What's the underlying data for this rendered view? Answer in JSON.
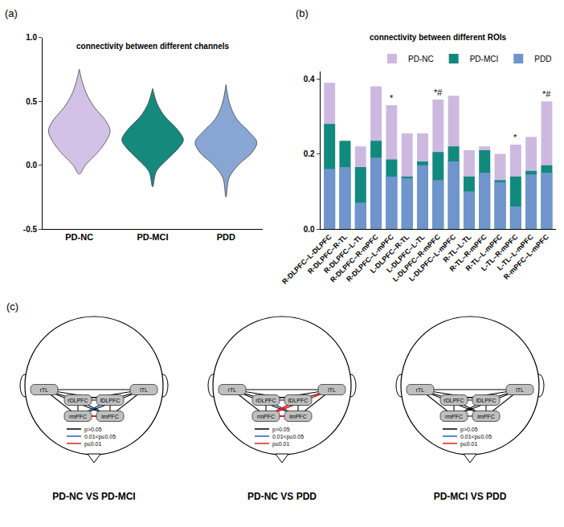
{
  "chart_data": [
    {
      "type": "violin",
      "panel": "(a)",
      "title": "connectivity between different channels",
      "categories": [
        "PD-NC",
        "PD-MCI",
        "PDD"
      ],
      "colors": [
        "#d3c2e7",
        "#14897c",
        "#87a6d4"
      ],
      "distributions": [
        {
          "y": [
            -0.07,
            0.0,
            0.1,
            0.2,
            0.27,
            0.35,
            0.45,
            0.55,
            0.65,
            0.75
          ],
          "density": [
            0,
            0.2,
            0.6,
            0.9,
            1.0,
            0.85,
            0.5,
            0.25,
            0.1,
            0
          ]
        },
        {
          "y": [
            -0.17,
            -0.05,
            0.05,
            0.15,
            0.2,
            0.28,
            0.38,
            0.48,
            0.6
          ],
          "density": [
            0,
            0.12,
            0.5,
            0.9,
            1.0,
            0.8,
            0.4,
            0.15,
            0
          ]
        },
        {
          "y": [
            -0.25,
            -0.1,
            0.0,
            0.1,
            0.18,
            0.26,
            0.36,
            0.48,
            0.63
          ],
          "density": [
            0,
            0.1,
            0.4,
            0.85,
            1.0,
            0.75,
            0.35,
            0.12,
            0
          ]
        }
      ],
      "ylim": [
        -0.5,
        1.0
      ],
      "yticks": [
        -0.5,
        {
          "value": 0,
          "label": "0.0"
        },
        0.5,
        {
          "value": 1,
          "label": "1.0"
        }
      ],
      "grid": false
    },
    {
      "type": "bar",
      "panel": "(b)",
      "title": "connectivity between different ROIs",
      "categories": [
        "R-DLPFC–L-DLPFC",
        "R-DLPFC–R-TL",
        "R-DLPFC–L-TL",
        "R-DLPFC–R-mPFC",
        "R-DLPFC–L-mPFC",
        "L-DLPFC–R-TL",
        "L-DLPFC–L-TL",
        "L-DLPFC–R-mPFC",
        "L-DLPFC–L-mPFC",
        "R-TL–L-TL",
        "R-TL–R-mPFC",
        "R-TL–L-mPFC",
        "L-TL–R-mPFC",
        "L-TL–L-mPFC",
        "R-mPFC–L-mPFC"
      ],
      "series": [
        {
          "name": "PD-NC",
          "color": "#cdb9e0",
          "values": [
            0.39,
            0.23,
            0.22,
            0.38,
            0.33,
            0.255,
            0.255,
            0.345,
            0.355,
            0.21,
            0.22,
            0.2,
            0.225,
            0.245,
            0.34
          ]
        },
        {
          "name": "PD-MCI",
          "color": "#118a7e",
          "values": [
            0.28,
            0.235,
            0.165,
            0.235,
            0.185,
            0.14,
            0.18,
            0.205,
            0.22,
            0.14,
            0.21,
            0.13,
            0.14,
            0.155,
            0.17
          ]
        },
        {
          "name": "PDD",
          "color": "#7095cc",
          "values": [
            0.16,
            0.165,
            0.07,
            0.19,
            0.14,
            0.135,
            0.17,
            0.13,
            0.18,
            0.1,
            0.15,
            0.125,
            0.06,
            0.145,
            0.15
          ]
        }
      ],
      "stacked": false,
      "legend": "top right",
      "ylim": [
        0,
        0.42
      ],
      "yticks": [
        {
          "value": 0,
          "label": "0.0"
        },
        0.2,
        0.4
      ],
      "grid": false,
      "annotations": [
        {
          "category": "R-DLPFC–L-mPFC",
          "text": "*"
        },
        {
          "category": "L-DLPFC–R-mPFC",
          "text": "*#"
        },
        {
          "category": "L-TL–R-mPFC",
          "text": "*"
        },
        {
          "category": "R-mPFC–L-mPFC",
          "text": "*#"
        }
      ]
    }
  ],
  "diagram": {
    "panel": "(c)",
    "nodes": [
      "rTL",
      "lTL",
      "rDLPFC",
      "lDLPFC",
      "rmPFC",
      "lmPFC"
    ],
    "legend": [
      {
        "label": "p>0.05",
        "color": "#000000"
      },
      {
        "label": "0.01<p≤0.05",
        "color": "#1f5fbf"
      },
      {
        "label": "p≤0.01",
        "color": "#e0201b"
      }
    ],
    "edges": [
      [
        "rDLPFC",
        "lDLPFC"
      ],
      [
        "rDLPFC",
        "rTL"
      ],
      [
        "rDLPFC",
        "lTL"
      ],
      [
        "rDLPFC",
        "rmPFC"
      ],
      [
        "rDLPFC",
        "lmPFC"
      ],
      [
        "lDLPFC",
        "rTL"
      ],
      [
        "lDLPFC",
        "lTL"
      ],
      [
        "lDLPFC",
        "rmPFC"
      ],
      [
        "lDLPFC",
        "lmPFC"
      ],
      [
        "rTL",
        "lTL"
      ],
      [
        "rTL",
        "rmPFC"
      ],
      [
        "rTL",
        "lmPFC"
      ],
      [
        "lTL",
        "rmPFC"
      ],
      [
        "lTL",
        "lmPFC"
      ],
      [
        "rmPFC",
        "lmPFC"
      ]
    ],
    "panels": [
      {
        "title": "PD-NC VS PD-MCI",
        "edge_colors": [
          "#000000",
          "#000000",
          "#000000",
          "#000000",
          "#000000",
          "#000000",
          "#000000",
          "#1f5fbf",
          "#000000",
          "#000000",
          "#000000",
          "#000000",
          "#000000",
          "#000000",
          "#e0201b"
        ]
      },
      {
        "title": "PD-NC VS PDD",
        "edge_colors": [
          "#000000",
          "#000000",
          "#000000",
          "#000000",
          "#1f5fbf",
          "#000000",
          "#000000",
          "#e0201b",
          "#000000",
          "#000000",
          "#000000",
          "#000000",
          "#e0201b",
          "#000000",
          "#e0201b"
        ]
      },
      {
        "title": "PD-MCI VS PDD",
        "edge_colors": [
          "#000000",
          "#000000",
          "#000000",
          "#000000",
          "#000000",
          "#000000",
          "#000000",
          "#000000",
          "#000000",
          "#000000",
          "#000000",
          "#000000",
          "#000000",
          "#000000",
          "#000000"
        ]
      }
    ]
  }
}
